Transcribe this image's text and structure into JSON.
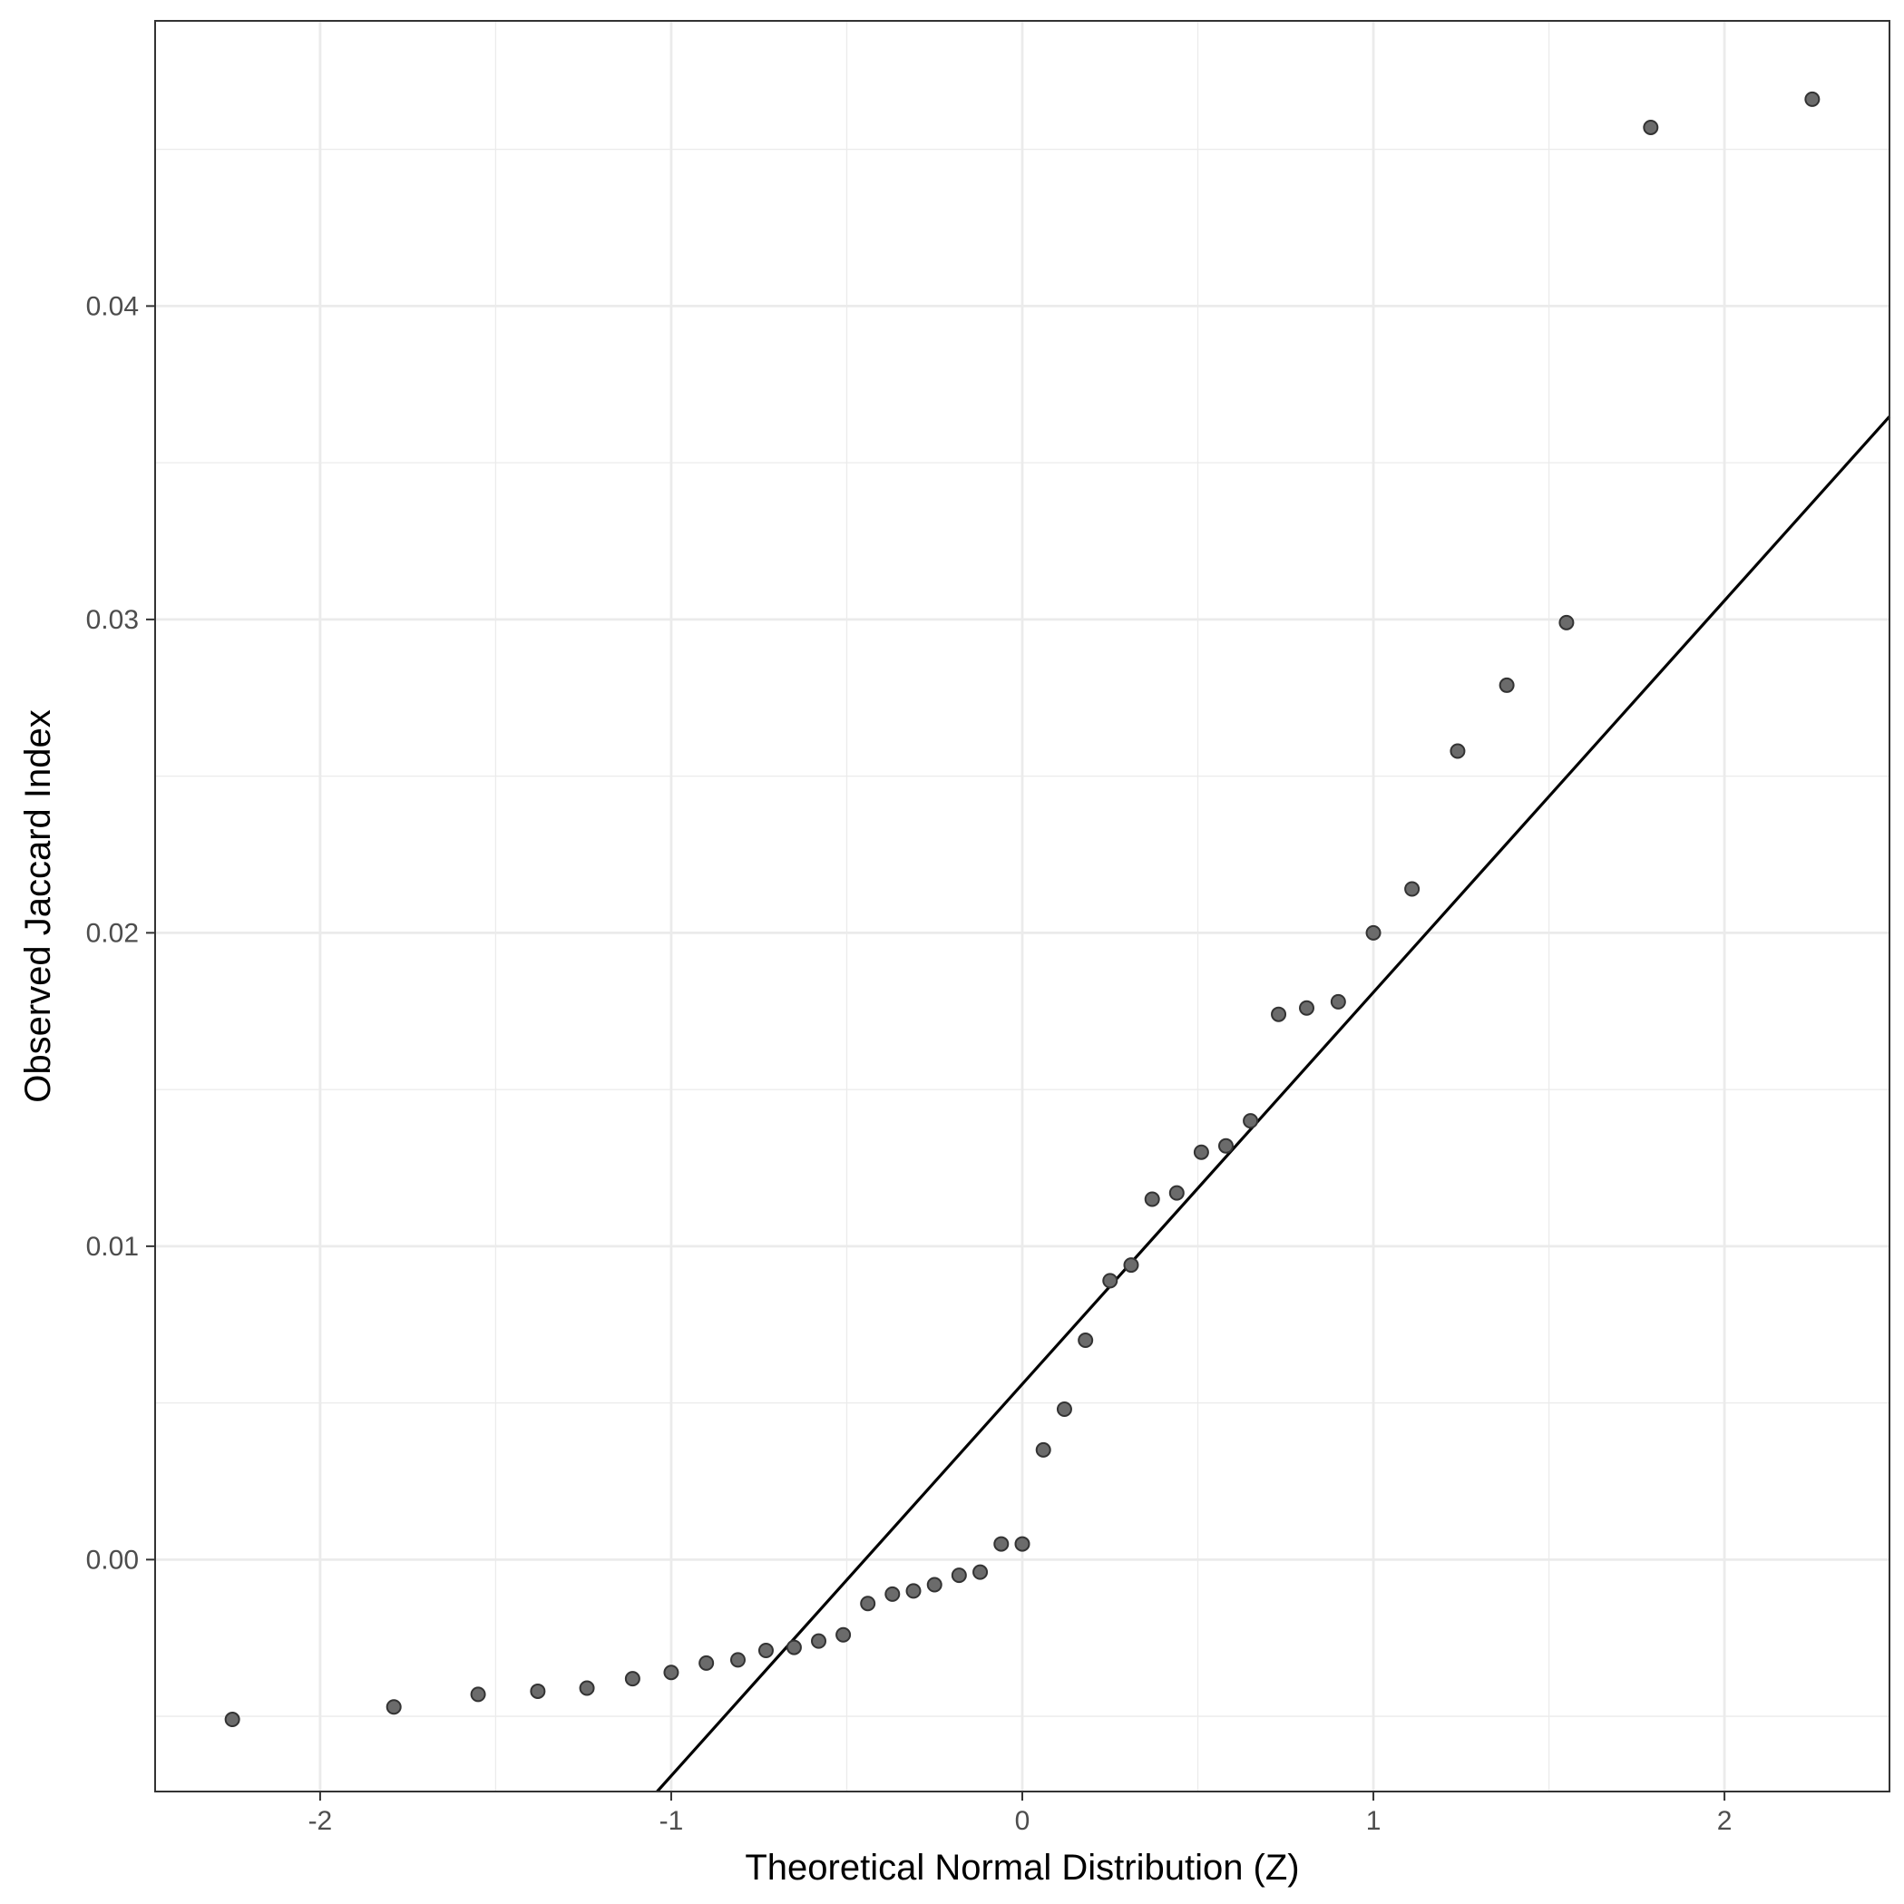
{
  "chart_data": {
    "type": "scatter",
    "title": "",
    "xlabel": "Theoretical Normal Distribution (Z)",
    "ylabel": "Observed Jaccard Index",
    "xlim": [
      -2.47,
      2.47
    ],
    "ylim": [
      -0.0074,
      0.0491
    ],
    "x_ticks": [
      -2,
      -1,
      0,
      1,
      2
    ],
    "x_tick_labels": [
      "-2",
      "-1",
      "0",
      "1",
      "2"
    ],
    "x_minor_ticks": [
      -1.5,
      -0.5,
      0.5,
      1.5
    ],
    "y_ticks": [
      0.0,
      0.01,
      0.02,
      0.03,
      0.04
    ],
    "y_tick_labels": [
      "0.00",
      "0.01",
      "0.02",
      "0.03",
      "0.04"
    ],
    "y_minor_ticks": [
      -0.005,
      0.005,
      0.015,
      0.025,
      0.035,
      0.045
    ],
    "grid": true,
    "reference_line": {
      "intercept": 0.0056,
      "slope": 0.0125
    },
    "colors": {
      "point_fill": "#6b6b6b",
      "point_stroke": "#333333",
      "grid": "#ebebeb",
      "line": "#000000"
    },
    "series": [
      {
        "x": [
          -2.25,
          -1.79,
          -1.55,
          -1.38,
          -1.24,
          -1.11,
          -1.0,
          -0.9,
          -0.81,
          -0.73,
          -0.65,
          -0.58,
          -0.51,
          -0.44,
          -0.37,
          -0.31,
          -0.25,
          -0.18,
          -0.12,
          -0.06,
          0.0,
          0.06,
          0.12,
          0.18,
          0.25,
          0.31,
          0.37,
          0.44,
          0.51,
          0.58,
          0.65,
          0.73,
          0.81,
          0.9,
          1.0,
          1.11,
          1.24,
          1.38,
          1.55,
          1.79,
          2.25
        ],
        "y": [
          -0.0051,
          -0.0047,
          -0.0043,
          -0.0042,
          -0.0041,
          -0.0038,
          -0.0036,
          -0.0033,
          -0.0032,
          -0.0029,
          -0.0028,
          -0.0026,
          -0.0024,
          -0.0014,
          -0.0011,
          -0.001,
          -0.0008,
          -0.0005,
          -0.0004,
          0.0005,
          0.0005,
          0.0035,
          0.0048,
          0.007,
          0.0089,
          0.0094,
          0.0115,
          0.0117,
          0.013,
          0.0132,
          0.014,
          0.0174,
          0.0176,
          0.0178,
          0.02,
          0.0214,
          0.0258,
          0.0279,
          0.0299,
          0.0457,
          0.0466
        ]
      }
    ]
  }
}
